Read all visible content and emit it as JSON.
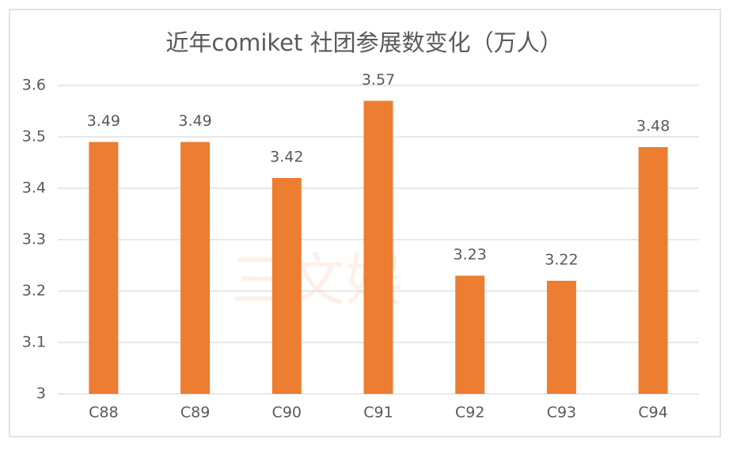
{
  "chart_data": {
    "type": "bar",
    "title": "近年comiket 社团参展数变化（万人）",
    "categories": [
      "C88",
      "C89",
      "C90",
      "C91",
      "C92",
      "C93",
      "C94"
    ],
    "values": [
      3.49,
      3.49,
      3.42,
      3.57,
      3.23,
      3.22,
      3.48
    ],
    "color": "#ed7d31",
    "ylim": [
      3,
      3.6
    ],
    "yticks": [
      3,
      3.1,
      3.2,
      3.3,
      3.4,
      3.5,
      3.6
    ],
    "grid": true,
    "watermark": "三文娱"
  }
}
